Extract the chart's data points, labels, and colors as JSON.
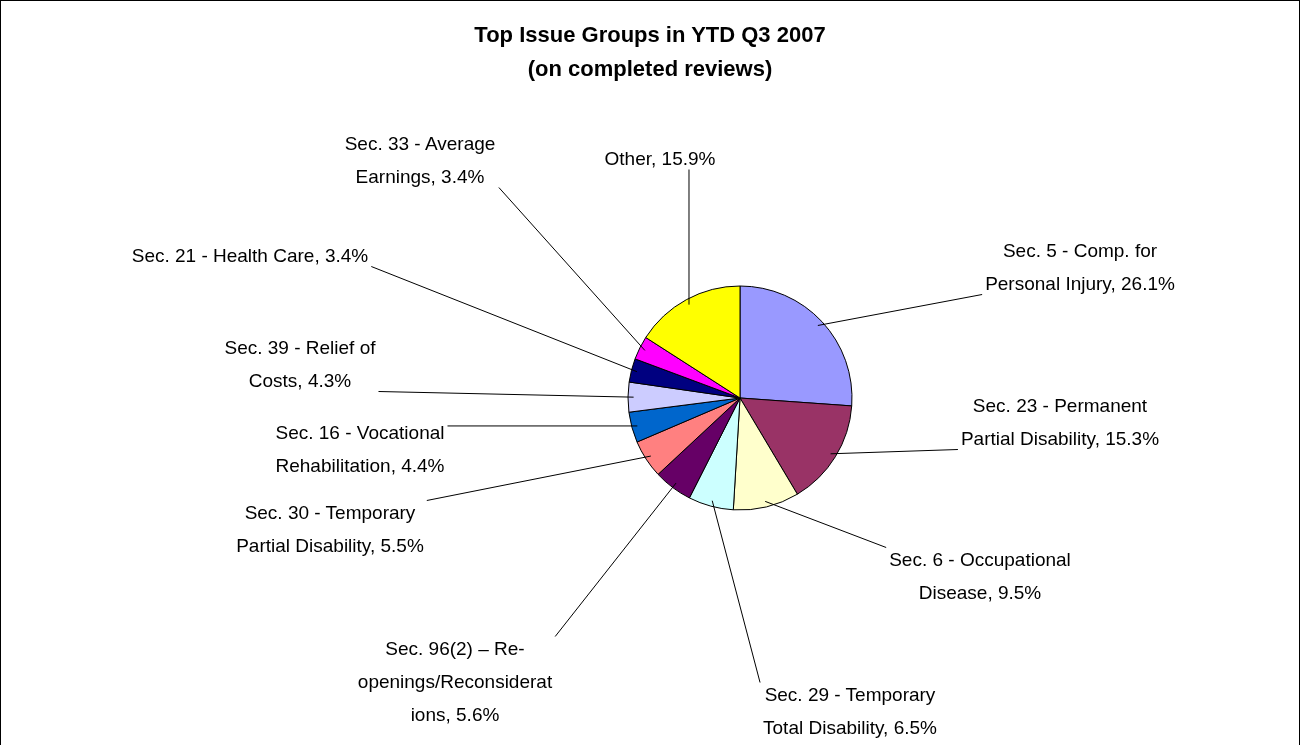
{
  "chart_data": {
    "type": "pie",
    "title": "Top Issue Groups in YTD Q3 2007",
    "subtitle": "(on completed reviews)",
    "categories": [
      "Sec. 5 - Comp. for\nPersonal Injury",
      "Sec. 23 - Permanent\nPartial Disability",
      "Sec. 6 - Occupational\nDisease",
      "Sec. 29 - Temporary\nTotal Disability",
      "Sec. 96(2) – Re-\nopenings/Reconsiderat\nions",
      "Sec. 30 - Temporary\nPartial Disability",
      "Sec. 16 - Vocational\nRehabilitation",
      "Sec. 39 - Relief of\nCosts",
      "Sec. 21 - Health Care",
      "Sec. 33 - Average\nEarnings",
      "Other"
    ],
    "values": [
      26.1,
      15.3,
      9.5,
      6.5,
      5.6,
      5.5,
      4.4,
      4.3,
      3.4,
      3.4,
      15.9
    ],
    "value_labels": [
      "26.1%",
      "15.3%",
      "9.5%",
      "6.5%",
      "5.6%",
      "5.5%",
      "4.4%",
      "4.3%",
      "3.4%",
      "3.4%",
      "15.9%"
    ],
    "colors": [
      "#9999ff",
      "#993366",
      "#ffffcc",
      "#ccffff",
      "#660066",
      "#ff8080",
      "#0066cc",
      "#ccccff",
      "#000080",
      "#ff00ff",
      "#ffff00"
    ]
  }
}
